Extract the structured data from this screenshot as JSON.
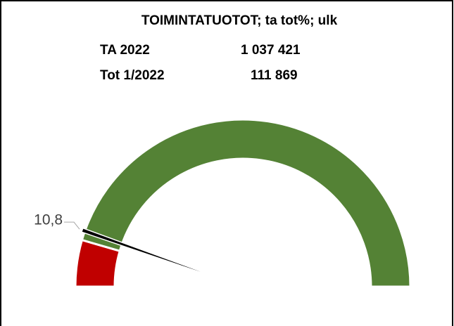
{
  "chart_data": {
    "type": "gauge",
    "title": "TOIMINTATUOTOT; ta tot%; ulk",
    "rows": [
      [
        "TA 2022",
        "1 037 421"
      ],
      [
        "Tot 1/2022",
        "111 869"
      ]
    ],
    "range": [
      0,
      100
    ],
    "bands": [
      {
        "color": "#c00000",
        "value": 9
      },
      {
        "color": "#548235",
        "value": 91
      }
    ],
    "value": 10.8,
    "value_label": "10,8",
    "needle_color": "#000000"
  }
}
